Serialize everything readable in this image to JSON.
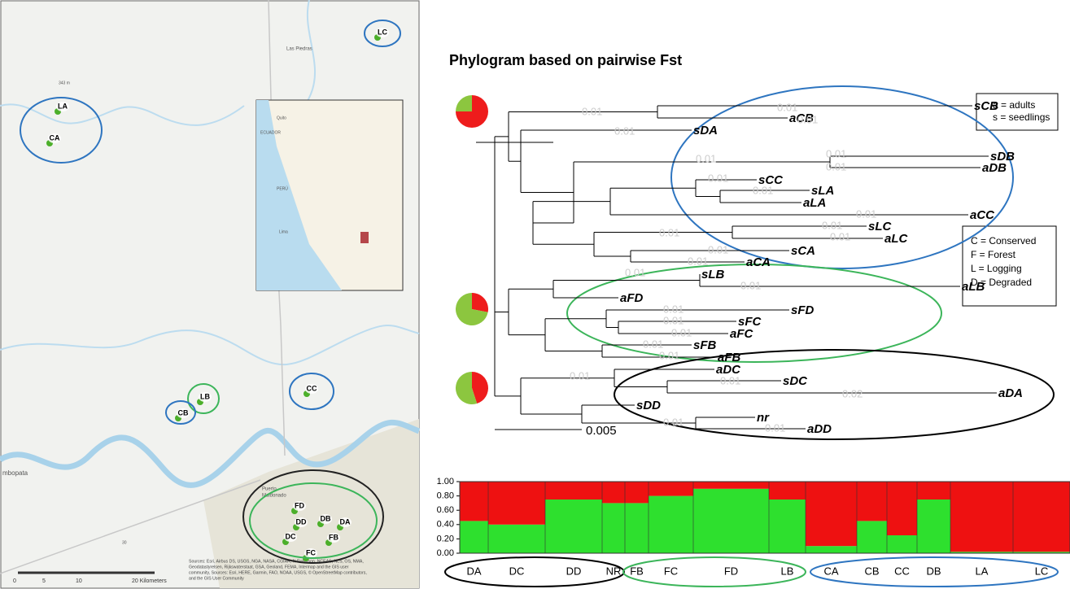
{
  "map": {
    "place_labels": [
      "Las Piedras",
      "343 m",
      "mbopata",
      "Puerto",
      "Maldonado"
    ],
    "sites": [
      "LC",
      "LA",
      "CA",
      "LB",
      "CB",
      "CC",
      "FD",
      "DD",
      "DB",
      "DA",
      "DC",
      "FB",
      "FC"
    ],
    "inset_labels": [
      "Quito",
      "ECUADOR",
      "PERÚ",
      "Lima"
    ],
    "scale": [
      "0",
      "5",
      "10",
      "20 Kilometers"
    ],
    "road": "30",
    "sources": [
      "Sources: Esri, Airbus DS, USGS, NGA, NASA, CGIAR, N Robinson, NCEAS, NLS, OS, NMA,",
      "Geodatastyrelsen, Rijkswaterstaat, GSA, Geoland, FEMA, Intermap and the GIS user",
      "community, Sources: Esri, HERE, Garmin, FAO, NOAA, USGS, © OpenStreetMap contributors,",
      "and the GIS User Community"
    ]
  },
  "phylogram": {
    "title": "Phylogram based on pairwise Fst",
    "leaves": [
      "sCB",
      "aCB",
      "sDA",
      "sDB",
      "aDB",
      "sCC",
      "sLA",
      "aLA",
      "aCC",
      "sLC",
      "aLC",
      "sCA",
      "aCA",
      "sLB",
      "aLB",
      "aFD",
      "sFD",
      "sFC",
      "aFC",
      "sFB",
      "aFB",
      "aDC",
      "sDC",
      "aDA",
      "sDD",
      "nr",
      "aDD"
    ],
    "branch_labels": [
      "0.01",
      "0.01",
      "0.01",
      "0.01",
      "0.01",
      "0.01",
      "0.01",
      "0.01",
      "0.01",
      "0.01",
      "0.01",
      "0.01",
      "0.01",
      "0.01",
      "0.01",
      "0.01",
      "0.01",
      "0.01",
      "0.01",
      "0.01",
      "0.01",
      "0.01",
      "0.01",
      "0.01",
      "0.02",
      "0.01",
      "0.01"
    ],
    "scale_label": "0.005",
    "legend_age": [
      "a = adults",
      "s = seedlings"
    ],
    "legend_habitat": [
      "C = Conserved",
      "F = Forest",
      "L = Logging",
      "D = Degraded"
    ],
    "pie_colors": [
      "#8cc63f",
      "#ee1c1c"
    ],
    "pies": [
      {
        "values": [
          25,
          75
        ]
      },
      {
        "values": [
          72,
          28
        ]
      },
      {
        "values": [
          55,
          45
        ]
      }
    ]
  },
  "chart_data": {
    "type": "stacked_bar",
    "categories": [
      "DA",
      "DC",
      "DD",
      "NR",
      "FB",
      "FC",
      "FD",
      "LB",
      "CA",
      "CB",
      "CC",
      "DB",
      "LA",
      "LC"
    ],
    "series": [
      {
        "color": "#2ee02e",
        "values": [
          0.45,
          0.4,
          0.75,
          0.7,
          0.7,
          0.8,
          0.9,
          0.75,
          0.1,
          0.45,
          0.25,
          0.75,
          0.02,
          0.02
        ]
      },
      {
        "color": "#ee1111",
        "values": [
          0.55,
          0.6,
          0.25,
          0.3,
          0.3,
          0.2,
          0.1,
          0.25,
          0.9,
          0.55,
          0.75,
          0.25,
          0.98,
          0.98
        ]
      }
    ],
    "ylim": [
      0,
      1
    ],
    "yticks": [
      {
        "value": 0,
        "label": "0.00"
      },
      {
        "value": 0.2,
        "label": "0.20"
      },
      {
        "value": 0.4,
        "label": "0.40"
      },
      {
        "value": 0.6,
        "label": "0.60"
      },
      {
        "value": 0.8,
        "label": "0.80"
      },
      {
        "value": 1,
        "label": "1.00"
      }
    ]
  }
}
